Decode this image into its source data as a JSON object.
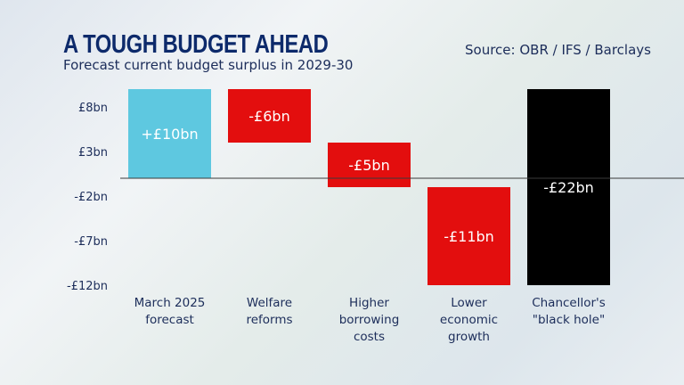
{
  "header": {
    "title": "A TOUGH BUDGET AHEAD",
    "subtitle": "Forecast current budget surplus in 2029-30",
    "source": "Source: OBR / IFS / Barclays"
  },
  "chart_data": {
    "type": "bar",
    "subtype": "waterfall",
    "title": "A TOUGH BUDGET AHEAD",
    "subtitle": "Forecast current budget surplus in 2029-30",
    "xlabel": "",
    "ylabel": "",
    "ylim": [
      -12,
      10
    ],
    "yticks": [
      8,
      3,
      -2,
      -7,
      -12
    ],
    "ytick_labels": [
      "£8bn",
      "£3bn",
      "-£2bn",
      "-£7bn",
      "-£12bn"
    ],
    "grid": false,
    "categories": [
      [
        "March 2025",
        "forecast"
      ],
      [
        "Welfare",
        "reforms"
      ],
      [
        "Higher",
        "borrowing",
        "costs"
      ],
      [
        "Lower",
        "economic",
        "growth"
      ],
      [
        "Chancellor's",
        "\"black hole\""
      ]
    ],
    "values": [
      10,
      -6,
      -5,
      -11,
      -22
    ],
    "starts": [
      0,
      10,
      4,
      -1,
      10
    ],
    "ends": [
      10,
      4,
      -1,
      -12,
      -12
    ],
    "data_labels": [
      "+£10bn",
      "-£6bn",
      "-£5bn",
      "-£11bn",
      "-£22bn"
    ],
    "colors": [
      "#5ec8e0",
      "#e30e0e",
      "#e30e0e",
      "#e30e0e",
      "#000000"
    ]
  }
}
